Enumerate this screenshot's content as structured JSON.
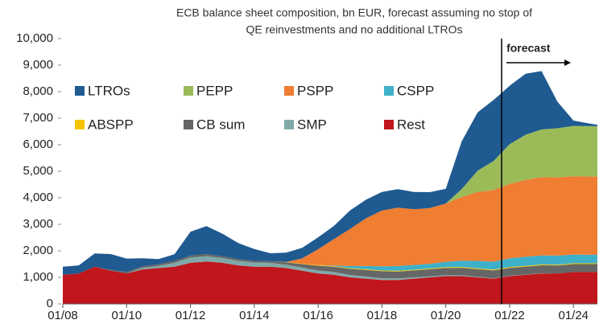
{
  "chart_data": {
    "type": "stacked_area",
    "title": "ECB balance sheet composition, bn EUR, forecast assuming no stop of",
    "subtitle": "QE reinvestments and no additional LTROs",
    "x": [
      2008,
      2008.5,
      2009,
      2009.5,
      2010,
      2010.5,
      2011,
      2011.5,
      2012,
      2012.5,
      2013,
      2013.5,
      2014,
      2014.5,
      2015,
      2015.5,
      2016,
      2016.5,
      2017,
      2017.5,
      2018,
      2018.5,
      2019,
      2019.5,
      2020,
      2020.5,
      2021,
      2021.5,
      2022,
      2022.5,
      2023,
      2023.5,
      2024,
      2024.5,
      2024.75
    ],
    "series": [
      {
        "name": "LTROs",
        "color": "#1f5a91",
        "values": [
          300,
          300,
          500,
          600,
          500,
          300,
          200,
          250,
          900,
          1050,
          850,
          600,
          450,
          300,
          350,
          400,
          450,
          500,
          700,
          700,
          700,
          700,
          650,
          600,
          550,
          1800,
          2200,
          2300,
          2200,
          2300,
          2200,
          1000,
          200,
          100,
          50
        ]
      },
      {
        "name": "PEPP",
        "color": "#9bbb59",
        "values": [
          0,
          0,
          0,
          0,
          0,
          0,
          0,
          0,
          0,
          0,
          0,
          0,
          0,
          0,
          0,
          0,
          0,
          0,
          0,
          0,
          0,
          0,
          0,
          0,
          0,
          300,
          800,
          1100,
          1500,
          1700,
          1800,
          1850,
          1900,
          1900,
          1900
        ]
      },
      {
        "name": "PSPP",
        "color": "#ef7d32",
        "values": [
          0,
          0,
          0,
          0,
          0,
          0,
          0,
          0,
          0,
          0,
          0,
          0,
          0,
          0,
          0,
          200,
          600,
          1000,
          1400,
          1800,
          2100,
          2200,
          2100,
          2100,
          2200,
          2400,
          2600,
          2700,
          2800,
          2900,
          2950,
          2950,
          2950,
          2950,
          2950
        ]
      },
      {
        "name": "CSPP",
        "color": "#3fb0c9",
        "values": [
          0,
          0,
          0,
          0,
          0,
          0,
          0,
          0,
          0,
          0,
          0,
          0,
          0,
          0,
          0,
          0,
          0,
          20,
          80,
          120,
          160,
          180,
          180,
          180,
          200,
          240,
          280,
          300,
          330,
          340,
          340,
          340,
          330,
          320,
          320
        ]
      },
      {
        "name": "ABSPP",
        "color": "#f5c400",
        "values": [
          0,
          0,
          0,
          0,
          0,
          0,
          0,
          0,
          0,
          0,
          0,
          0,
          0,
          0,
          10,
          15,
          20,
          25,
          25,
          28,
          28,
          28,
          28,
          28,
          30,
          30,
          30,
          30,
          30,
          30,
          30,
          30,
          30,
          30,
          30
        ]
      },
      {
        "name": "CB sum",
        "color": "#666666",
        "values": [
          0,
          0,
          0,
          30,
          60,
          60,
          60,
          70,
          70,
          80,
          70,
          70,
          60,
          60,
          90,
          130,
          180,
          200,
          230,
          250,
          260,
          260,
          260,
          265,
          270,
          280,
          290,
          295,
          300,
          300,
          300,
          300,
          300,
          300,
          300
        ]
      },
      {
        "name": "SMP",
        "color": "#7fa9a9",
        "values": [
          0,
          0,
          0,
          0,
          0,
          60,
          80,
          150,
          200,
          200,
          180,
          170,
          160,
          150,
          130,
          120,
          110,
          100,
          90,
          80,
          70,
          60,
          50,
          40,
          35,
          30,
          20,
          15,
          10,
          5,
          5,
          0,
          0,
          0,
          0
        ]
      },
      {
        "name": "Rest",
        "color": "#c0161c",
        "values": [
          1100,
          1150,
          1400,
          1250,
          1150,
          1300,
          1350,
          1400,
          1550,
          1600,
          1550,
          1450,
          1400,
          1400,
          1350,
          1250,
          1150,
          1100,
          1000,
          950,
          900,
          900,
          950,
          1000,
          1050,
          1050,
          1000,
          950,
          1050,
          1100,
          1150,
          1150,
          1200,
          1200,
          1200
        ]
      }
    ],
    "xlim": [
      2008,
      2024.75
    ],
    "xticks": [
      {
        "value": 2008,
        "label": "01/08"
      },
      {
        "value": 2010,
        "label": "01/10"
      },
      {
        "value": 2012,
        "label": "01/12"
      },
      {
        "value": 2014,
        "label": "01/14"
      },
      {
        "value": 2016,
        "label": "01/16"
      },
      {
        "value": 2018,
        "label": "01/18"
      },
      {
        "value": 2020,
        "label": "01/20"
      },
      {
        "value": 2022,
        "label": "01/22"
      },
      {
        "value": 2024,
        "label": "01/24"
      }
    ],
    "ylim": [
      0,
      10000
    ],
    "yticks": [
      0,
      {
        "value": 1000,
        "label": "1,000"
      },
      {
        "value": 2000,
        "label": "2,000"
      },
      {
        "value": 3000,
        "label": "3,000"
      },
      {
        "value": 4000,
        "label": "4,000"
      },
      {
        "value": 5000,
        "label": "5,000"
      },
      {
        "value": 6000,
        "label": "6,000"
      },
      {
        "value": 7000,
        "label": "7,000"
      },
      {
        "value": 8000,
        "label": "8,000"
      },
      {
        "value": 9000,
        "label": "9,000"
      },
      {
        "value": 10000,
        "label": "10,000"
      }
    ],
    "annotations": [
      {
        "text": "forecast",
        "x": 2021.75
      }
    ],
    "legend": "upper left"
  }
}
